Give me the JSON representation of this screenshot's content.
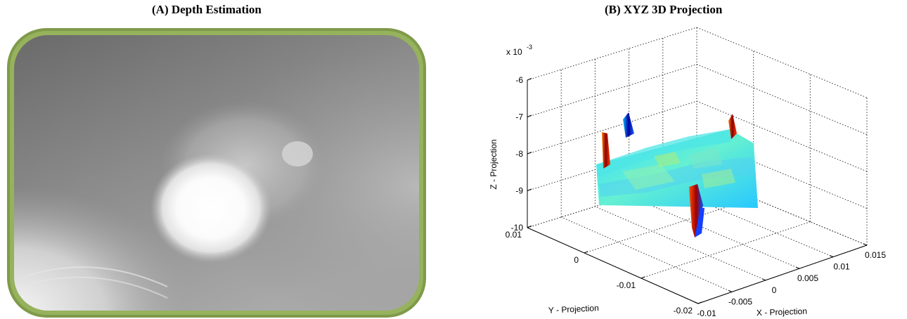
{
  "panel_a": {
    "title": "(A) Depth Estimation"
  },
  "panel_b": {
    "title": "(B) XYZ 3D Projection",
    "z_multiplier": "x 10",
    "z_exponent": "-3",
    "z_axis_label": "Z - Projection",
    "y_axis_label": "Y - Projection",
    "x_axis_label": "X - Projection",
    "z_ticks": [
      "-6",
      "-7",
      "-8",
      "-9",
      "-10"
    ],
    "y_ticks": [
      "0.01",
      "0",
      "-0.01",
      "-0.02"
    ],
    "x_ticks": [
      "-0.01",
      "-0.005",
      "0",
      "0.005",
      "0.01",
      "0.015"
    ],
    "colormap": "jet"
  }
}
